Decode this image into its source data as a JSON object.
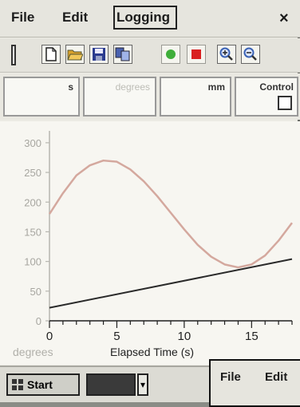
{
  "menubar": {
    "file": "File",
    "edit": "Edit",
    "logging": "Logging",
    "close": "×"
  },
  "toolbar": {
    "buttons": [
      {
        "name": "new-doc-icon",
        "color": "#ffffff"
      },
      {
        "name": "open-folder-icon",
        "color": "#d9a12b"
      },
      {
        "name": "save-disk-icon",
        "color": "#2b3b8f"
      },
      {
        "name": "copy-icon",
        "color": "#4a62b0"
      },
      {
        "name": "start-green-icon",
        "color": "#3fae3a"
      },
      {
        "name": "stop-red-icon",
        "color": "#d92020"
      },
      {
        "name": "zoom-in-icon",
        "color": "#3a62b5"
      },
      {
        "name": "zoom-out-icon",
        "color": "#3a62b5"
      }
    ]
  },
  "readouts": {
    "cell1_unit": "s",
    "cell2_unit": "degrees",
    "cell3_unit": "mm",
    "cell4_label": "Control"
  },
  "graph": {
    "y_ticks": [
      "300",
      "250",
      "200",
      "150",
      "100",
      "50",
      "0"
    ],
    "x_ticks": [
      "0",
      "5",
      "10",
      "15"
    ],
    "y_unit_label": "degrees",
    "x_axis_title": "Elapsed Time  (s)"
  },
  "chart_data": {
    "type": "line",
    "xlabel": "Elapsed Time  (s)",
    "ylabel": "degrees",
    "xlim": [
      0,
      18
    ],
    "ylim": [
      0,
      320
    ],
    "series": [
      {
        "color": "#d4a89e",
        "x": [
          0,
          1,
          2,
          3,
          4,
          5,
          6,
          7,
          8,
          9,
          10,
          11,
          12,
          13,
          14,
          15,
          16,
          17,
          18
        ],
        "y": [
          180,
          215,
          245,
          262,
          270,
          268,
          255,
          235,
          210,
          182,
          154,
          128,
          108,
          95,
          90,
          95,
          110,
          135,
          165
        ]
      },
      {
        "color": "#2a2a2a",
        "x": [
          0,
          18
        ],
        "y": [
          22,
          104
        ]
      }
    ]
  },
  "taskbar": {
    "start_label": "Start",
    "arrow": "▾"
  },
  "popup": {
    "file": "File",
    "edit": "Edit"
  }
}
